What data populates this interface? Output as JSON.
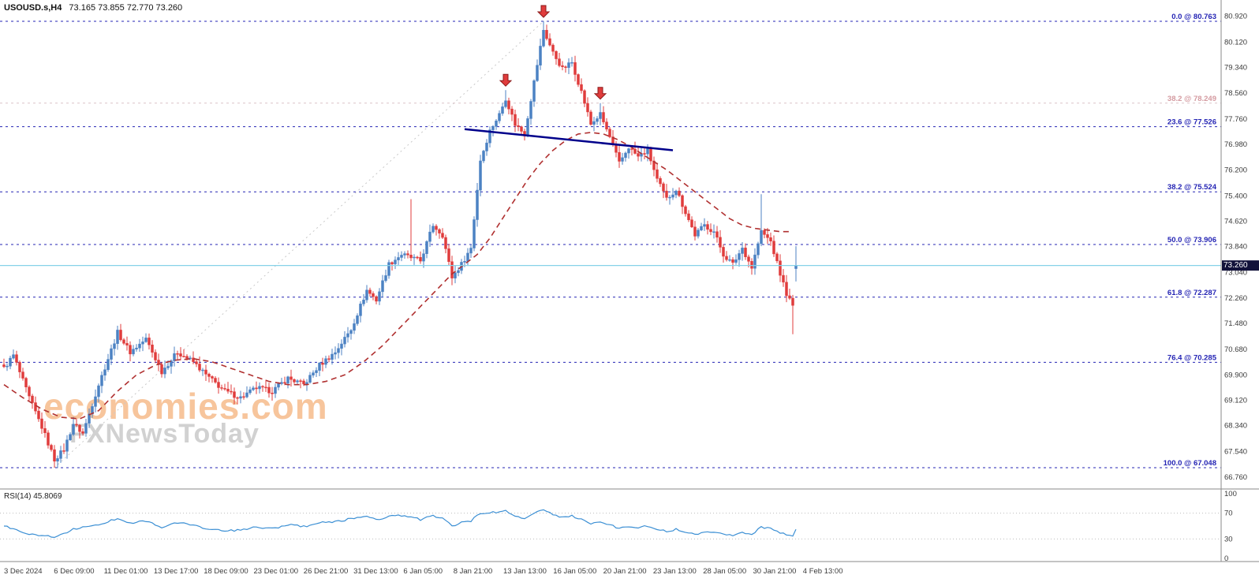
{
  "colors": {
    "up": "#4c82c3",
    "down": "#e03c3c",
    "ma": "#b03030",
    "trendline": "#00008b",
    "fib": "#2424b4",
    "fib_faded": "#d49aa0",
    "faded_line": "#dcc3c8",
    "diagonal": "#c9c9c9",
    "current_line": "#86d2e8",
    "badge_bg": "#12123a",
    "badge_text": "#ffffff",
    "rsi_line": "#3b8fd4",
    "axis_text": "#3a3a3a",
    "separator": "#8a8a8a",
    "watermark_orange": "rgba(242,158,90,0.6)",
    "watermark_gray": "rgba(178,178,178,0.6)"
  },
  "header": {
    "symbol": "USOUSD.s,H4",
    "ohlc": "73.165 73.855 72.770 73.260"
  },
  "watermark": {
    "line1": "economies.com",
    "line2": "FXNewsToday"
  },
  "price_axis": {
    "ticks": [
      "80.920",
      "80.120",
      "79.340",
      "78.560",
      "77.760",
      "76.980",
      "76.200",
      "75.400",
      "74.620",
      "73.840",
      "73.040",
      "72.260",
      "71.480",
      "70.680",
      "69.900",
      "69.120",
      "68.340",
      "67.540",
      "66.760"
    ],
    "current": "73.260"
  },
  "time_axis": [
    "3 Dec 2024",
    "6 Dec 09:00",
    "11 Dec 01:00",
    "13 Dec 17:00",
    "18 Dec 09:00",
    "23 Dec 01:00",
    "26 Dec 21:00",
    "31 Dec 13:00",
    "6 Jan 05:00",
    "8 Jan 21:00",
    "13 Jan 13:00",
    "16 Jan 05:00",
    "20 Jan 21:00",
    "23 Jan 13:00",
    "28 Jan 05:00",
    "30 Jan 21:00",
    "4 Feb 13:00"
  ],
  "fib_levels": [
    {
      "label": "0.0 @ 80.763",
      "price": 80.763,
      "style": "blue"
    },
    {
      "label": "38.2 @ 78.249",
      "price": 78.249,
      "style": "faded"
    },
    {
      "label": "23.6 @ 77.526",
      "price": 77.526,
      "style": "blue"
    },
    {
      "label": "38.2 @ 75.524",
      "price": 75.524,
      "style": "blue"
    },
    {
      "label": "50.0 @ 73.906",
      "price": 73.906,
      "style": "blue"
    },
    {
      "label": "61.8 @ 72.287",
      "price": 72.287,
      "style": "blue"
    },
    {
      "label": "76.4 @ 70.285",
      "price": 70.285,
      "style": "blue"
    },
    {
      "label": "100.0 @ 67.048",
      "price": 67.048,
      "style": "blue"
    }
  ],
  "current_price": 73.26,
  "rsi": {
    "label": "RSI(14) 45.8069",
    "last_value": 45.8069,
    "ticks": [
      "100",
      "70",
      "30",
      "0"
    ],
    "tick_values": [
      100,
      70,
      30,
      0
    ],
    "dotted_levels": [
      70,
      30
    ],
    "anchors": [
      [
        0,
        50
      ],
      [
        8,
        38
      ],
      [
        16,
        33
      ],
      [
        22,
        45
      ],
      [
        30,
        52
      ],
      [
        36,
        62
      ],
      [
        40,
        55
      ],
      [
        45,
        58
      ],
      [
        50,
        48
      ],
      [
        55,
        55
      ],
      [
        60,
        52
      ],
      [
        64,
        46
      ],
      [
        70,
        42
      ],
      [
        75,
        44
      ],
      [
        80,
        48
      ],
      [
        85,
        46
      ],
      [
        90,
        52
      ],
      [
        95,
        49
      ],
      [
        100,
        55
      ],
      [
        105,
        57
      ],
      [
        110,
        61
      ],
      [
        115,
        66
      ],
      [
        118,
        60
      ],
      [
        122,
        65
      ],
      [
        126,
        66
      ],
      [
        129,
        64
      ],
      [
        132,
        60
      ],
      [
        136,
        66
      ],
      [
        139,
        62
      ],
      [
        142,
        50
      ],
      [
        145,
        55
      ],
      [
        148,
        58
      ],
      [
        151,
        70
      ],
      [
        154,
        71
      ],
      [
        157,
        72
      ],
      [
        159,
        73
      ],
      [
        162,
        65
      ],
      [
        165,
        62
      ],
      [
        168,
        70
      ],
      [
        171,
        74
      ],
      [
        174,
        68
      ],
      [
        177,
        64
      ],
      [
        180,
        66
      ],
      [
        183,
        60
      ],
      [
        186,
        54
      ],
      [
        189,
        57
      ],
      [
        192,
        52
      ],
      [
        195,
        46
      ],
      [
        198,
        50
      ],
      [
        201,
        48
      ],
      [
        204,
        50
      ],
      [
        207,
        45
      ],
      [
        210,
        42
      ],
      [
        213,
        45
      ],
      [
        216,
        41
      ],
      [
        219,
        37
      ],
      [
        222,
        42
      ],
      [
        225,
        41
      ],
      [
        228,
        37
      ],
      [
        231,
        36
      ],
      [
        234,
        41
      ],
      [
        237,
        37
      ],
      [
        240,
        48
      ],
      [
        243,
        46
      ],
      [
        246,
        40
      ],
      [
        248,
        36
      ],
      [
        250,
        35
      ],
      [
        251,
        45.8
      ]
    ]
  },
  "chart_data": {
    "type": "candlestick",
    "symbol": "USOUSD.s",
    "timeframe": "H4",
    "title": "USOUSD.s,H4",
    "last_ohlc": {
      "open": 73.165,
      "high": 73.855,
      "low": 72.77,
      "close": 73.26
    },
    "ylim": [
      66.3,
      81.4
    ],
    "candle_count": 252,
    "close_anchors": [
      [
        0,
        70.1
      ],
      [
        3,
        70.5
      ],
      [
        8,
        69.2
      ],
      [
        12,
        68.3
      ],
      [
        16,
        67.3
      ],
      [
        19,
        67.6
      ],
      [
        22,
        68.4
      ],
      [
        25,
        68.1
      ],
      [
        30,
        69.6
      ],
      [
        36,
        71.2
      ],
      [
        40,
        70.6
      ],
      [
        45,
        71.0
      ],
      [
        50,
        70.0
      ],
      [
        55,
        70.6
      ],
      [
        60,
        70.3
      ],
      [
        64,
        69.9
      ],
      [
        70,
        69.4
      ],
      [
        75,
        69.2
      ],
      [
        80,
        69.5
      ],
      [
        85,
        69.4
      ],
      [
        90,
        69.8
      ],
      [
        95,
        69.6
      ],
      [
        100,
        70.2
      ],
      [
        105,
        70.6
      ],
      [
        110,
        71.3
      ],
      [
        115,
        72.5
      ],
      [
        118,
        72.2
      ],
      [
        122,
        73.3
      ],
      [
        126,
        73.6
      ],
      [
        129,
        73.5
      ],
      [
        132,
        73.4
      ],
      [
        136,
        74.5
      ],
      [
        139,
        74.2
      ],
      [
        142,
        72.9
      ],
      [
        145,
        73.3
      ],
      [
        148,
        73.8
      ],
      [
        151,
        76.5
      ],
      [
        154,
        77.4
      ],
      [
        157,
        77.9
      ],
      [
        159,
        78.4
      ],
      [
        162,
        77.6
      ],
      [
        165,
        77.3
      ],
      [
        168,
        78.9
      ],
      [
        171,
        80.5
      ],
      [
        174,
        79.8
      ],
      [
        177,
        79.3
      ],
      [
        180,
        79.5
      ],
      [
        183,
        78.6
      ],
      [
        186,
        77.6
      ],
      [
        189,
        77.9
      ],
      [
        192,
        77.2
      ],
      [
        195,
        76.4
      ],
      [
        198,
        76.9
      ],
      [
        201,
        76.6
      ],
      [
        204,
        76.8
      ],
      [
        207,
        75.9
      ],
      [
        210,
        75.3
      ],
      [
        213,
        75.6
      ],
      [
        216,
        74.9
      ],
      [
        219,
        74.2
      ],
      [
        222,
        74.5
      ],
      [
        225,
        74.3
      ],
      [
        228,
        73.6
      ],
      [
        231,
        73.3
      ],
      [
        234,
        73.8
      ],
      [
        237,
        73.2
      ],
      [
        240,
        74.3
      ],
      [
        243,
        74.0
      ],
      [
        246,
        73.0
      ],
      [
        248,
        72.4
      ],
      [
        250,
        72.0
      ],
      [
        251,
        73.26
      ]
    ],
    "overrides": {
      "16": {
        "low": 67.048
      },
      "129": {
        "high": 75.3
      },
      "159": {
        "high": 78.65
      },
      "171": {
        "high": 80.763
      },
      "189": {
        "high": 78.25
      },
      "240": {
        "high": 75.45
      },
      "250": {
        "low": 71.15
      },
      "251": {
        "open": 73.165,
        "high": 73.855,
        "low": 72.77,
        "close": 73.26
      }
    },
    "ma_anchors": [
      [
        0,
        69.6
      ],
      [
        6,
        69.2
      ],
      [
        12,
        68.85
      ],
      [
        18,
        68.6
      ],
      [
        24,
        68.55
      ],
      [
        30,
        68.8
      ],
      [
        36,
        69.4
      ],
      [
        42,
        69.9
      ],
      [
        48,
        70.2
      ],
      [
        54,
        70.35
      ],
      [
        60,
        70.4
      ],
      [
        66,
        70.3
      ],
      [
        72,
        70.1
      ],
      [
        78,
        69.9
      ],
      [
        84,
        69.7
      ],
      [
        90,
        69.6
      ],
      [
        96,
        69.6
      ],
      [
        102,
        69.7
      ],
      [
        108,
        69.9
      ],
      [
        114,
        70.3
      ],
      [
        120,
        70.8
      ],
      [
        126,
        71.4
      ],
      [
        132,
        72.0
      ],
      [
        138,
        72.6
      ],
      [
        142,
        73.0
      ],
      [
        146,
        73.3
      ],
      [
        150,
        73.6
      ],
      [
        154,
        74.1
      ],
      [
        158,
        74.7
      ],
      [
        162,
        75.3
      ],
      [
        166,
        75.9
      ],
      [
        170,
        76.4
      ],
      [
        174,
        76.8
      ],
      [
        178,
        77.1
      ],
      [
        182,
        77.3
      ],
      [
        186,
        77.35
      ],
      [
        190,
        77.3
      ],
      [
        194,
        77.15
      ],
      [
        198,
        76.95
      ],
      [
        202,
        76.7
      ],
      [
        206,
        76.45
      ],
      [
        210,
        76.2
      ],
      [
        214,
        75.9
      ],
      [
        218,
        75.6
      ],
      [
        222,
        75.3
      ],
      [
        226,
        75.0
      ],
      [
        230,
        74.7
      ],
      [
        234,
        74.5
      ],
      [
        238,
        74.4
      ],
      [
        242,
        74.35
      ],
      [
        246,
        74.3
      ],
      [
        249,
        74.3
      ]
    ],
    "trendline": {
      "from": [
        146,
        77.45
      ],
      "to": [
        212,
        76.8
      ]
    },
    "fib_diagonal": {
      "from": [
        16,
        67.048
      ],
      "to": [
        171,
        80.763
      ]
    },
    "arrows": [
      {
        "index": 159,
        "price": 78.65
      },
      {
        "index": 171,
        "price": 80.763
      },
      {
        "index": 189,
        "price": 78.25
      }
    ]
  }
}
